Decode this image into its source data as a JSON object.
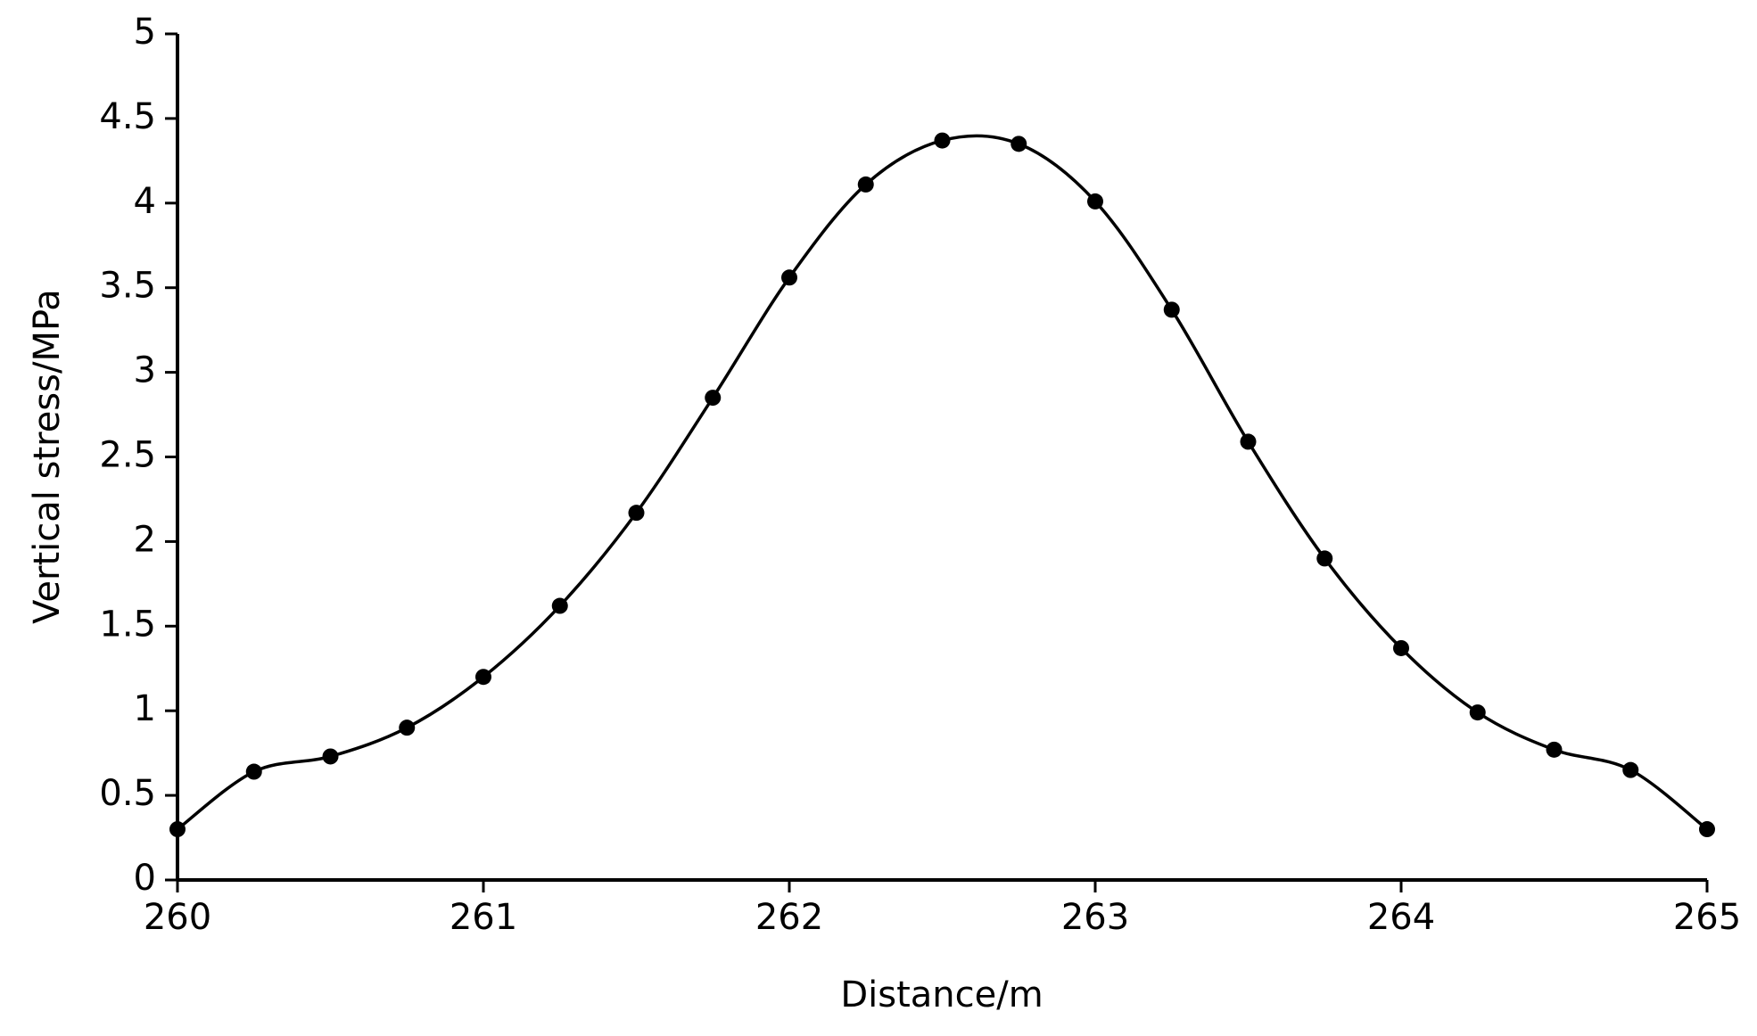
{
  "chart_data": {
    "type": "line",
    "x_label": "Distance/m",
    "y_label": "Vertical stress/MPa",
    "x": [
      260,
      260.25,
      260.5,
      260.75,
      261,
      261.25,
      261.5,
      261.75,
      262,
      262.25,
      262.5,
      262.75,
      263,
      263.25,
      263.5,
      263.75,
      264,
      264.25,
      264.5,
      264.75,
      265
    ],
    "values": [
      0.3,
      0.64,
      0.73,
      0.9,
      1.2,
      1.62,
      2.17,
      2.85,
      3.56,
      4.11,
      4.37,
      4.35,
      4.01,
      3.37,
      2.59,
      1.9,
      1.37,
      0.99,
      0.77,
      0.65,
      0.3
    ],
    "color": "#000000",
    "xlim": [
      260,
      265
    ],
    "xticks": [
      260,
      261,
      262,
      263,
      264,
      265
    ],
    "ylim": [
      0,
      5
    ],
    "yticks": [
      0,
      0.5,
      1,
      1.5,
      2,
      2.5,
      3,
      3.5,
      4,
      4.5,
      5
    ],
    "grid": false,
    "smooth": true,
    "markers": true
  }
}
